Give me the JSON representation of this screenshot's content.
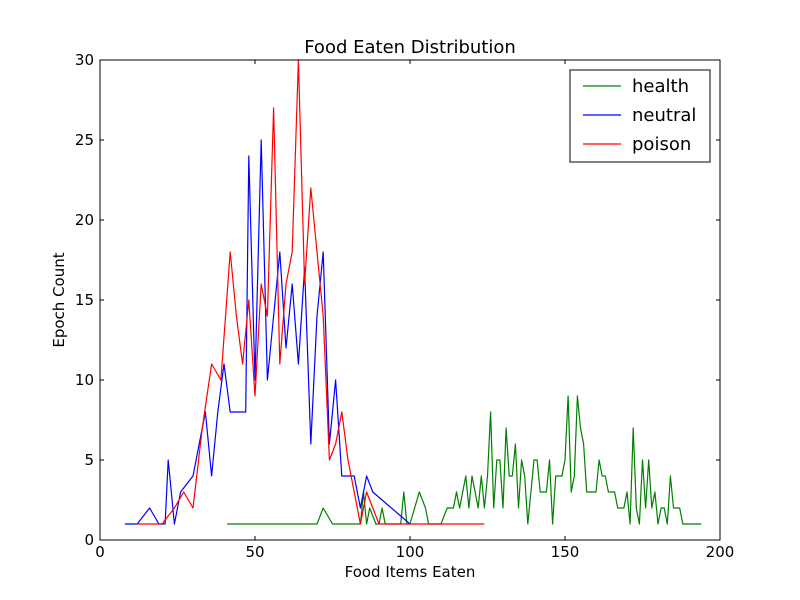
{
  "chart_data": {
    "type": "line",
    "title": "Food Eaten Distribution",
    "xlabel": "Food Items Eaten",
    "ylabel": "Epoch Count",
    "xlim": [
      0,
      200
    ],
    "ylim": [
      0,
      30
    ],
    "xticks": [
      0,
      50,
      100,
      150,
      200
    ],
    "yticks": [
      0,
      5,
      10,
      15,
      20,
      25,
      30
    ],
    "grid": false,
    "legend_position": "top-right",
    "series": [
      {
        "name": "health",
        "color": "#008000",
        "x": [
          41,
          70,
          72,
          75,
          84,
          85,
          86,
          87,
          89,
          90,
          91,
          92,
          95,
          97,
          98,
          99,
          100,
          103,
          105,
          106,
          110,
          112,
          114,
          115,
          116,
          117,
          118,
          119,
          120,
          121,
          122,
          123,
          124,
          125,
          126,
          127,
          128,
          129,
          130,
          131,
          132,
          133,
          134,
          135,
          136,
          137,
          138,
          139,
          140,
          141,
          142,
          143,
          144,
          145,
          146,
          147,
          148,
          149,
          150,
          151,
          152,
          153,
          154,
          155,
          156,
          157,
          158,
          159,
          160,
          161,
          162,
          163,
          164,
          165,
          166,
          167,
          168,
          169,
          170,
          171,
          172,
          173,
          174,
          175,
          176,
          177,
          178,
          179,
          180,
          181,
          182,
          183,
          184,
          185,
          186,
          187,
          188,
          189,
          190,
          193,
          194
        ],
        "y": [
          1,
          1,
          2,
          1,
          1,
          3,
          1,
          2,
          1,
          1,
          2,
          1,
          1,
          1,
          3,
          1,
          1,
          3,
          2,
          1,
          1,
          2,
          2,
          3,
          2,
          3,
          4,
          2,
          4,
          3,
          2,
          4,
          2,
          4,
          8,
          2,
          5,
          5,
          2,
          7,
          4,
          4,
          6,
          2,
          5,
          4,
          1,
          3,
          5,
          5,
          3,
          3,
          3,
          5,
          1,
          4,
          4,
          4,
          5,
          9,
          3,
          4,
          9,
          7,
          6,
          3,
          3,
          3,
          3,
          5,
          4,
          4,
          3,
          3,
          3,
          2,
          2,
          2,
          3,
          1,
          7,
          2,
          1,
          5,
          2,
          5,
          2,
          3,
          1,
          2,
          2,
          1,
          4,
          2,
          2,
          2,
          1,
          1,
          1,
          1,
          1
        ]
      },
      {
        "name": "neutral",
        "color": "#0000ff",
        "x": [
          8,
          12,
          16,
          19,
          21,
          22,
          24,
          26,
          30,
          34,
          36,
          38,
          40,
          42,
          47,
          48,
          50,
          52,
          54,
          56,
          58,
          60,
          62,
          64,
          66,
          68,
          70,
          72,
          74,
          76,
          78,
          82,
          84,
          86,
          88,
          100
        ],
        "y": [
          1,
          1,
          2,
          1,
          1,
          5,
          1,
          3,
          4,
          8,
          4,
          8,
          11,
          8,
          8,
          24,
          10,
          25,
          10,
          14,
          18,
          12,
          16,
          11,
          17,
          6,
          14,
          18,
          6,
          10,
          4,
          4,
          2,
          4,
          3,
          1
        ]
      },
      {
        "name": "poison",
        "color": "#ff0000",
        "x": [
          12,
          16,
          20,
          24,
          27,
          30,
          33,
          36,
          39,
          42,
          44,
          46,
          48,
          50,
          52,
          54,
          56,
          58,
          60,
          62,
          64,
          66,
          68,
          70,
          72,
          74,
          76,
          78,
          80,
          82,
          84,
          86,
          88,
          90,
          92,
          96,
          100,
          104,
          108,
          110,
          112,
          116,
          120,
          124
        ],
        "y": [
          1,
          1,
          1,
          2,
          3,
          2,
          7,
          11,
          10,
          18,
          14,
          11,
          15,
          9,
          16,
          14,
          27,
          11,
          16,
          18,
          30,
          16,
          22,
          18,
          14,
          5,
          6,
          8,
          5,
          3,
          1,
          3,
          2,
          1,
          1,
          1,
          1,
          1,
          1,
          1,
          1,
          1,
          1,
          1
        ]
      }
    ]
  }
}
